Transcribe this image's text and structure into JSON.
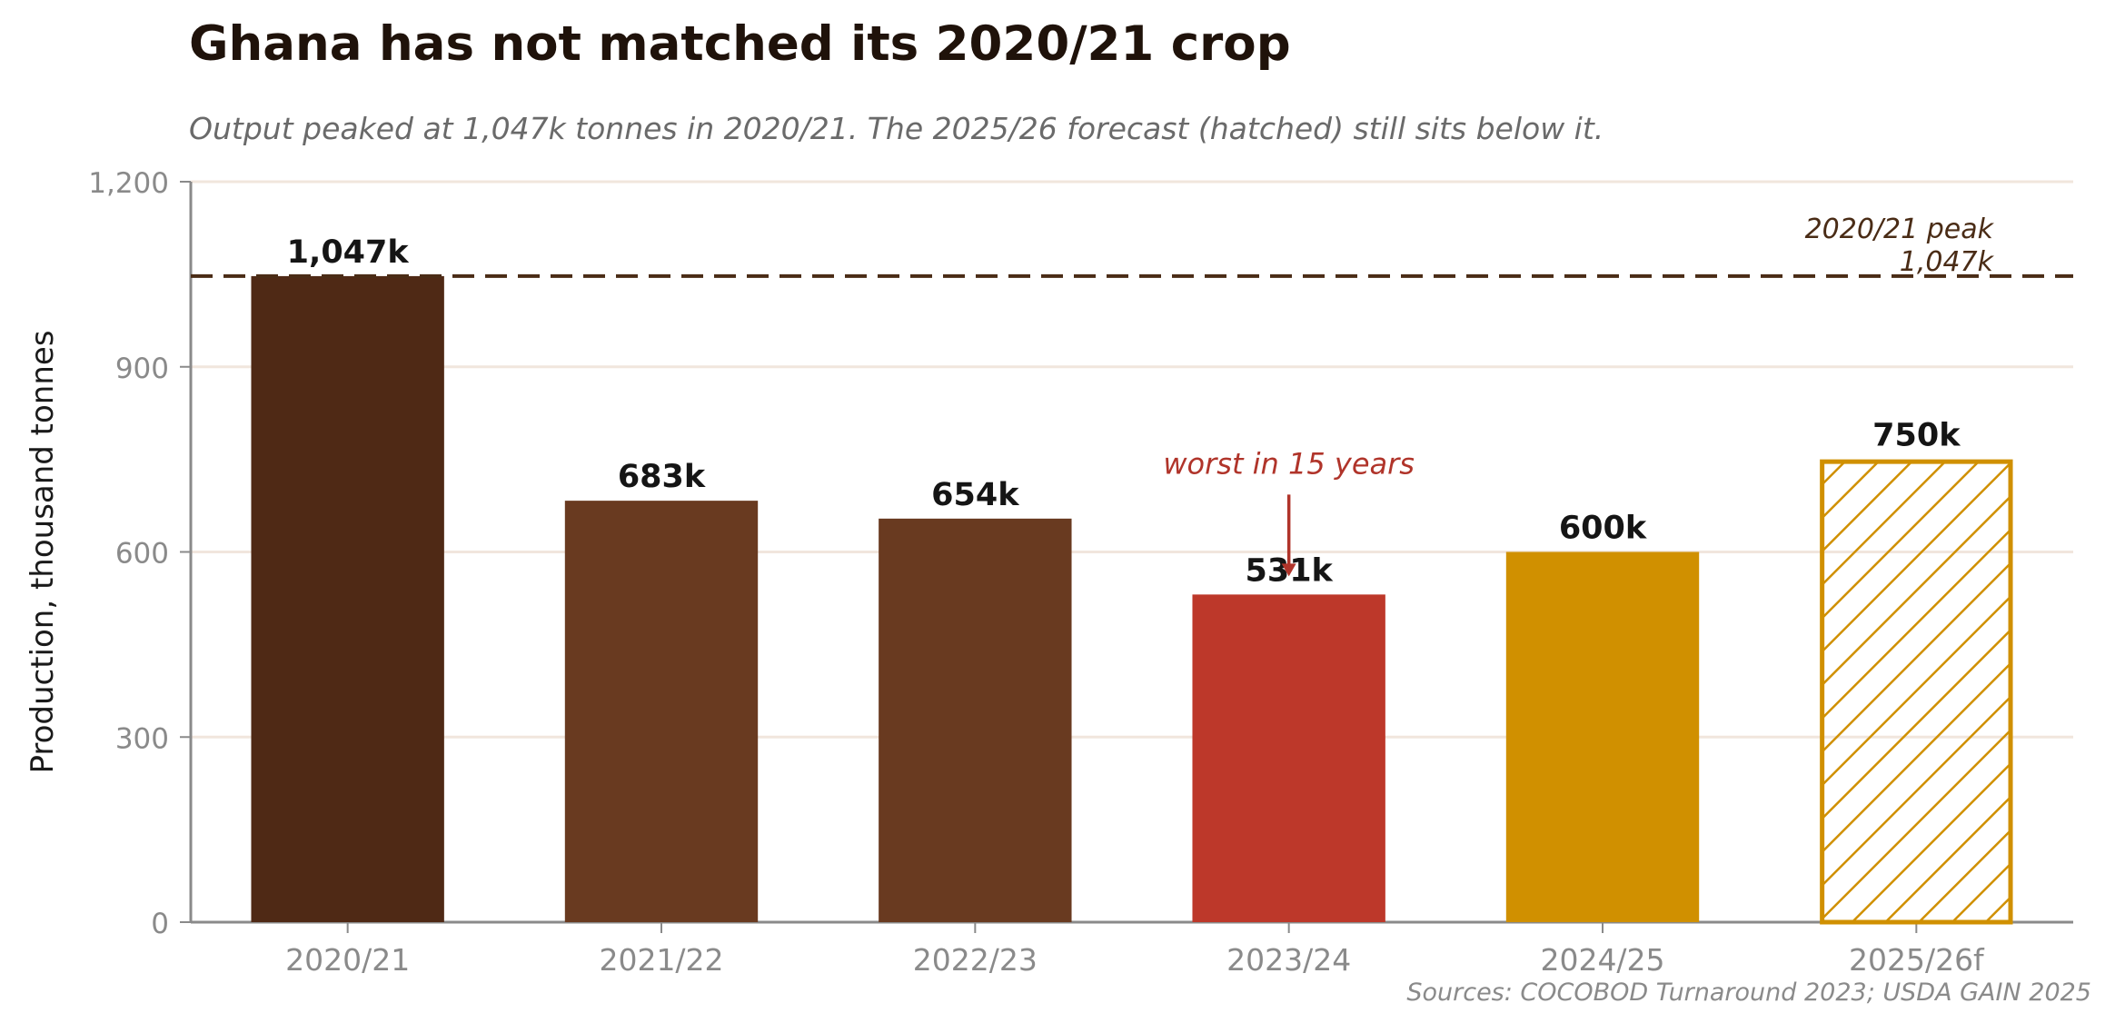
{
  "chart_data": {
    "type": "bar",
    "title": "Ghana has not matched its 2020/21 crop",
    "subtitle": "Output peaked at 1,047k tonnes in 2020/21. The 2025/26 forecast (hatched) still sits below it.",
    "ylabel": "Production, thousand tonnes",
    "xlabel": "",
    "ylim": [
      0,
      1200
    ],
    "yticks": [
      0,
      300,
      600,
      900,
      1200
    ],
    "ytick_labels": [
      "0",
      "300",
      "600",
      "900",
      "1,200"
    ],
    "grid": "horizontal",
    "categories": [
      "2020/21",
      "2021/22",
      "2022/23",
      "2023/24",
      "2024/25",
      "2025/26f"
    ],
    "values": [
      1047,
      683,
      654,
      531,
      600,
      750
    ],
    "value_labels": [
      "1,047k",
      "683k",
      "654k",
      "531k",
      "600k",
      "750k"
    ],
    "bar_colors": [
      "#4f2915",
      "#693a20",
      "#693a20",
      "#bd382a",
      "#d09000",
      "#d09000"
    ],
    "bar_hatched": [
      false,
      false,
      false,
      false,
      false,
      true
    ],
    "reference_line": {
      "value": 1047,
      "label_line1": "2020/21 peak",
      "label_line2": "1,047k",
      "color": "#4a2c16"
    },
    "annotation": {
      "text": "worst in 15 years",
      "category": "2023/24",
      "color": "#b0342a"
    },
    "source": "Sources: COCOBOD Turnaround 2023; USDA GAIN 2025"
  }
}
